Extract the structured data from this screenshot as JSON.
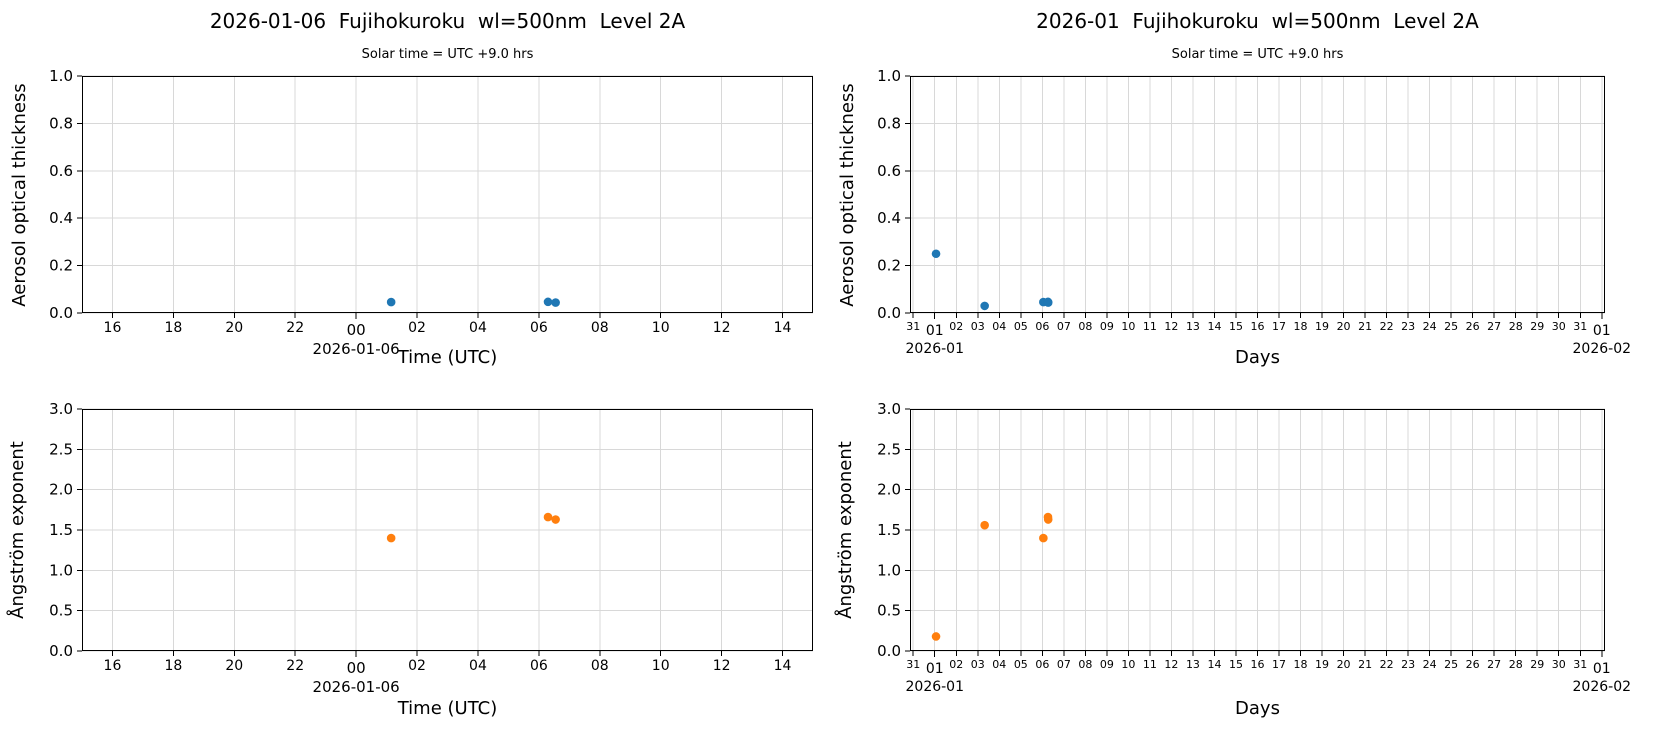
{
  "colors": {
    "background": "#ffffff",
    "grid": "#d8d8d8",
    "spine": "#000000",
    "text": "#000000",
    "aot_marker": "#1f77b4",
    "angstrom_marker": "#ff7f0e"
  },
  "chart_data": [
    {
      "id": "aot-day",
      "type": "scatter",
      "title": "2026-01-06  Fujihokuroku  wl=500nm  Level 2A",
      "subtitle": "Solar time = UTC +9.0 hrs",
      "xlabel": "Time (UTC)",
      "ylabel": "Aerosol optical thickness",
      "grid": true,
      "marker_color": "#1f77b4",
      "xlim": [
        -9,
        15
      ],
      "ylim": [
        0,
        1
      ],
      "xticks": [
        {
          "v": -8,
          "label": "16"
        },
        {
          "v": -6,
          "label": "18"
        },
        {
          "v": -4,
          "label": "20"
        },
        {
          "v": -2,
          "label": "22"
        },
        {
          "v": 0,
          "label": "00",
          "major": true,
          "date": "2026-01-06"
        },
        {
          "v": 2,
          "label": "02"
        },
        {
          "v": 4,
          "label": "04"
        },
        {
          "v": 6,
          "label": "06"
        },
        {
          "v": 8,
          "label": "08"
        },
        {
          "v": 10,
          "label": "10"
        },
        {
          "v": 12,
          "label": "12"
        },
        {
          "v": 14,
          "label": "14"
        }
      ],
      "yticks": [
        {
          "v": 0.0,
          "label": "0.0"
        },
        {
          "v": 0.2,
          "label": "0.2"
        },
        {
          "v": 0.4,
          "label": "0.4"
        },
        {
          "v": 0.6,
          "label": "0.6"
        },
        {
          "v": 0.8,
          "label": "0.8"
        },
        {
          "v": 1.0,
          "label": "1.0"
        }
      ],
      "points": [
        {
          "x": 1.15,
          "y": 0.046
        },
        {
          "x": 6.3,
          "y": 0.047
        },
        {
          "x": 6.55,
          "y": 0.044
        }
      ]
    },
    {
      "id": "aot-month",
      "type": "scatter",
      "title": "2026-01  Fujihokuroku  wl=500nm  Level 2A",
      "subtitle": "Solar time = UTC +9.0 hrs",
      "xlabel": "Days",
      "ylabel": "Aerosol optical thickness",
      "grid": true,
      "marker_color": "#1f77b4",
      "xlim": [
        -0.15,
        32.15
      ],
      "ylim": [
        0,
        1
      ],
      "xticks": [
        {
          "v": 0,
          "label": "31"
        },
        {
          "v": 1,
          "label": "01",
          "major": true,
          "date": "2026-01"
        },
        {
          "v": 2,
          "label": "02"
        },
        {
          "v": 3,
          "label": "03"
        },
        {
          "v": 4,
          "label": "04"
        },
        {
          "v": 5,
          "label": "05"
        },
        {
          "v": 6,
          "label": "06"
        },
        {
          "v": 7,
          "label": "07"
        },
        {
          "v": 8,
          "label": "08"
        },
        {
          "v": 9,
          "label": "09"
        },
        {
          "v": 10,
          "label": "10"
        },
        {
          "v": 11,
          "label": "11"
        },
        {
          "v": 12,
          "label": "12"
        },
        {
          "v": 13,
          "label": "13"
        },
        {
          "v": 14,
          "label": "14"
        },
        {
          "v": 15,
          "label": "15"
        },
        {
          "v": 16,
          "label": "16"
        },
        {
          "v": 17,
          "label": "17"
        },
        {
          "v": 18,
          "label": "18"
        },
        {
          "v": 19,
          "label": "19"
        },
        {
          "v": 20,
          "label": "20"
        },
        {
          "v": 21,
          "label": "21"
        },
        {
          "v": 22,
          "label": "22"
        },
        {
          "v": 23,
          "label": "23"
        },
        {
          "v": 24,
          "label": "24"
        },
        {
          "v": 25,
          "label": "25"
        },
        {
          "v": 26,
          "label": "26"
        },
        {
          "v": 27,
          "label": "27"
        },
        {
          "v": 28,
          "label": "28"
        },
        {
          "v": 29,
          "label": "29"
        },
        {
          "v": 30,
          "label": "30"
        },
        {
          "v": 31,
          "label": "31"
        },
        {
          "v": 32,
          "label": "01",
          "major": true,
          "date": "2026-02"
        }
      ],
      "yticks": [
        {
          "v": 0.0,
          "label": "0.0"
        },
        {
          "v": 0.2,
          "label": "0.2"
        },
        {
          "v": 0.4,
          "label": "0.4"
        },
        {
          "v": 0.6,
          "label": "0.6"
        },
        {
          "v": 0.8,
          "label": "0.8"
        },
        {
          "v": 1.0,
          "label": "1.0"
        }
      ],
      "points": [
        {
          "x": 1.06,
          "y": 0.25
        },
        {
          "x": 3.32,
          "y": 0.03
        },
        {
          "x": 6.048,
          "y": 0.046
        },
        {
          "x": 6.263,
          "y": 0.047
        },
        {
          "x": 6.273,
          "y": 0.044
        }
      ]
    },
    {
      "id": "angstrom-day",
      "type": "scatter",
      "title": "",
      "subtitle": "",
      "xlabel": "Time (UTC)",
      "ylabel": "Ångström exponent",
      "grid": true,
      "marker_color": "#ff7f0e",
      "xlim": [
        -9,
        15
      ],
      "ylim": [
        0,
        3
      ],
      "xticks": [
        {
          "v": -8,
          "label": "16"
        },
        {
          "v": -6,
          "label": "18"
        },
        {
          "v": -4,
          "label": "20"
        },
        {
          "v": -2,
          "label": "22"
        },
        {
          "v": 0,
          "label": "00",
          "major": true,
          "date": "2026-01-06"
        },
        {
          "v": 2,
          "label": "02"
        },
        {
          "v": 4,
          "label": "04"
        },
        {
          "v": 6,
          "label": "06"
        },
        {
          "v": 8,
          "label": "08"
        },
        {
          "v": 10,
          "label": "10"
        },
        {
          "v": 12,
          "label": "12"
        },
        {
          "v": 14,
          "label": "14"
        }
      ],
      "yticks": [
        {
          "v": 0.0,
          "label": "0.0"
        },
        {
          "v": 0.5,
          "label": "0.5"
        },
        {
          "v": 1.0,
          "label": "1.0"
        },
        {
          "v": 1.5,
          "label": "1.5"
        },
        {
          "v": 2.0,
          "label": "2.0"
        },
        {
          "v": 2.5,
          "label": "2.5"
        },
        {
          "v": 3.0,
          "label": "3.0"
        }
      ],
      "points": [
        {
          "x": 1.15,
          "y": 1.4
        },
        {
          "x": 6.3,
          "y": 1.66
        },
        {
          "x": 6.55,
          "y": 1.63
        }
      ]
    },
    {
      "id": "angstrom-month",
      "type": "scatter",
      "title": "",
      "subtitle": "",
      "xlabel": "Days",
      "ylabel": "Ångström exponent",
      "grid": true,
      "marker_color": "#ff7f0e",
      "xlim": [
        -0.15,
        32.15
      ],
      "ylim": [
        0,
        3
      ],
      "xticks": [
        {
          "v": 0,
          "label": "31"
        },
        {
          "v": 1,
          "label": "01",
          "major": true,
          "date": "2026-01"
        },
        {
          "v": 2,
          "label": "02"
        },
        {
          "v": 3,
          "label": "03"
        },
        {
          "v": 4,
          "label": "04"
        },
        {
          "v": 5,
          "label": "05"
        },
        {
          "v": 6,
          "label": "06"
        },
        {
          "v": 7,
          "label": "07"
        },
        {
          "v": 8,
          "label": "08"
        },
        {
          "v": 9,
          "label": "09"
        },
        {
          "v": 10,
          "label": "10"
        },
        {
          "v": 11,
          "label": "11"
        },
        {
          "v": 12,
          "label": "12"
        },
        {
          "v": 13,
          "label": "13"
        },
        {
          "v": 14,
          "label": "14"
        },
        {
          "v": 15,
          "label": "15"
        },
        {
          "v": 16,
          "label": "16"
        },
        {
          "v": 17,
          "label": "17"
        },
        {
          "v": 18,
          "label": "18"
        },
        {
          "v": 19,
          "label": "19"
        },
        {
          "v": 20,
          "label": "20"
        },
        {
          "v": 21,
          "label": "21"
        },
        {
          "v": 22,
          "label": "22"
        },
        {
          "v": 23,
          "label": "23"
        },
        {
          "v": 24,
          "label": "24"
        },
        {
          "v": 25,
          "label": "25"
        },
        {
          "v": 26,
          "label": "26"
        },
        {
          "v": 27,
          "label": "27"
        },
        {
          "v": 28,
          "label": "28"
        },
        {
          "v": 29,
          "label": "29"
        },
        {
          "v": 30,
          "label": "30"
        },
        {
          "v": 31,
          "label": "31"
        },
        {
          "v": 32,
          "label": "01",
          "major": true,
          "date": "2026-02"
        }
      ],
      "yticks": [
        {
          "v": 0.0,
          "label": "0.0"
        },
        {
          "v": 0.5,
          "label": "0.5"
        },
        {
          "v": 1.0,
          "label": "1.0"
        },
        {
          "v": 1.5,
          "label": "1.5"
        },
        {
          "v": 2.0,
          "label": "2.0"
        },
        {
          "v": 2.5,
          "label": "2.5"
        },
        {
          "v": 3.0,
          "label": "3.0"
        }
      ],
      "points": [
        {
          "x": 1.06,
          "y": 0.18
        },
        {
          "x": 3.32,
          "y": 1.56
        },
        {
          "x": 6.048,
          "y": 1.4
        },
        {
          "x": 6.263,
          "y": 1.66
        },
        {
          "x": 6.273,
          "y": 1.63
        }
      ]
    }
  ]
}
